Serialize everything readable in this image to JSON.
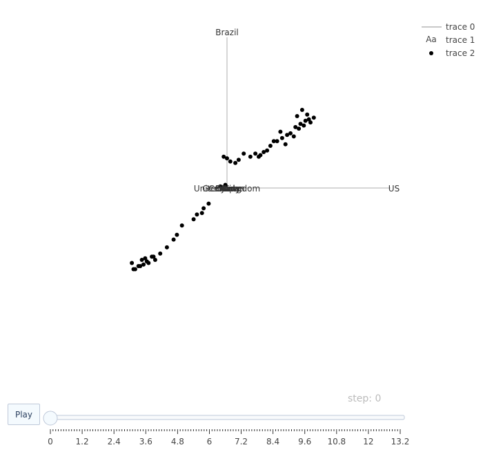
{
  "controls": {
    "play_label": "Play",
    "step_label": "step: 0"
  },
  "legend": {
    "items": [
      {
        "name": "trace 0",
        "symbol": "line"
      },
      {
        "name": "trace 1",
        "symbol": "text",
        "glyph": "Aa"
      },
      {
        "name": "trace 2",
        "symbol": "dot"
      }
    ]
  },
  "slider": {
    "value": 0,
    "tick_labels": [
      "0",
      "1.2",
      "2.4",
      "3.6",
      "4.8",
      "6",
      "7.2",
      "8.4",
      "9.6",
      "10.8",
      "12",
      "13.2"
    ]
  },
  "colors": {
    "axis_line": "#c8c8c8",
    "markers": "#000000",
    "slider_rail": "#bec8d9",
    "slider_grip": "#f4fafe"
  },
  "chart_data": {
    "type": "scatter",
    "axis_labels": {
      "top": "Brazil",
      "right": "US",
      "left": "United Kingdom",
      "overlapping_center": [
        "Germany",
        "Canada",
        "China",
        "France",
        "Italy",
        "Japan"
      ]
    },
    "axes": {
      "xlim": [
        -1,
        1
      ],
      "ylim": [
        -1,
        1
      ]
    },
    "points": [
      [
        0.45,
        0.5
      ],
      [
        0.48,
        0.47
      ],
      [
        0.52,
        0.45
      ],
      [
        0.42,
        0.46
      ],
      [
        0.5,
        0.42
      ],
      [
        0.46,
        0.4
      ],
      [
        0.43,
        0.38
      ],
      [
        0.38,
        0.35
      ],
      [
        0.33,
        0.32
      ],
      [
        0.35,
        0.28
      ],
      [
        0.3,
        0.3
      ],
      [
        0.28,
        0.3
      ],
      [
        0.26,
        0.27
      ],
      [
        0.32,
        0.36
      ],
      [
        0.4,
        0.33
      ],
      [
        0.47,
        0.43
      ],
      [
        0.44,
        0.41
      ],
      [
        0.49,
        0.44
      ],
      [
        0.36,
        0.34
      ],
      [
        0.41,
        0.39
      ],
      [
        0.24,
        0.24
      ],
      [
        0.22,
        0.23
      ],
      [
        0.2,
        0.21
      ],
      [
        0.19,
        0.2
      ],
      [
        0.17,
        0.22
      ],
      [
        0.14,
        0.2
      ],
      [
        0.1,
        0.22
      ],
      [
        0.0,
        0.19
      ],
      [
        -0.02,
        0.2
      ],
      [
        0.02,
        0.17
      ],
      [
        0.05,
        0.16
      ],
      [
        0.07,
        0.18
      ],
      [
        -0.11,
        -0.1
      ],
      [
        -0.14,
        -0.13
      ],
      [
        -0.15,
        -0.16
      ],
      [
        -0.18,
        -0.17
      ],
      [
        -0.2,
        -0.2
      ],
      [
        -0.27,
        -0.24
      ],
      [
        -0.3,
        -0.3
      ],
      [
        -0.32,
        -0.33
      ],
      [
        -0.36,
        -0.38
      ],
      [
        -0.4,
        -0.42
      ],
      [
        -0.43,
        -0.46
      ],
      [
        -0.45,
        -0.44
      ],
      [
        -0.48,
        -0.47
      ],
      [
        -0.5,
        -0.49
      ],
      [
        -0.52,
        -0.5
      ],
      [
        -0.55,
        -0.52
      ],
      [
        -0.53,
        -0.5
      ],
      [
        -0.51,
        -0.46
      ],
      [
        -0.49,
        -0.45
      ],
      [
        -0.47,
        -0.48
      ],
      [
        -0.57,
        -0.48
      ],
      [
        -0.56,
        -0.52
      ],
      [
        -0.44,
        -0.44
      ],
      [
        -0.01,
        0.02
      ],
      [
        -0.03,
        0.0
      ],
      [
        -0.04,
        0.01
      ]
    ]
  }
}
